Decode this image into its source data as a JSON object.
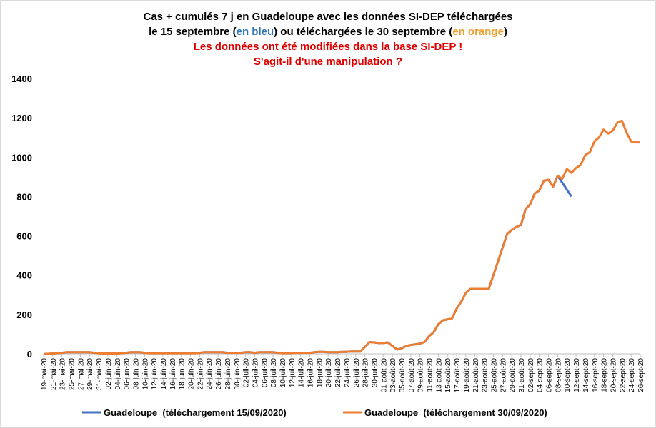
{
  "chart_data": {
    "type": "line",
    "title_lines": [
      [
        "Cas + cumulés 7 j en Guadeloupe avec les données SI-DEP téléchargées"
      ],
      [
        "le 15 septembre (",
        "en bleu",
        ") ou téléchargées le 30 septembre (",
        "en orange",
        ")"
      ]
    ],
    "title_colors": [
      [
        "#000000"
      ],
      [
        "#000000",
        "#2e75b6",
        "#000000",
        "#f0a030",
        "#000000"
      ]
    ],
    "subtitle_lines": [
      "Les données ont été modifiées dans la base SI-DEP !",
      "S'agit-il d'une manipulation ?"
    ],
    "subtitle_color": "#e00000",
    "categories": [
      "19-mai-20",
      null,
      "21-mai-20",
      null,
      "23-mai-20",
      null,
      "25-mai-20",
      null,
      "27-mai-20",
      null,
      "29-mai-20",
      null,
      "31-mai-20",
      null,
      "02-juin-20",
      null,
      "04-juin-20",
      null,
      "06-juin-20",
      null,
      "08-juin-20",
      null,
      "10-juin-20",
      null,
      "12-juin-20",
      null,
      "14-juin-20",
      null,
      "16-juin-20",
      null,
      "18-juin-20",
      null,
      "20-juin-20",
      null,
      "22-juin-20",
      null,
      "24-juin-20",
      null,
      "26-juin-20",
      null,
      "28-juin-20",
      null,
      "30-juin-20",
      null,
      "02-juil-20",
      null,
      "04-juil-20",
      null,
      "06-juil-20",
      null,
      "08-juil-20",
      null,
      "10-juil-20",
      null,
      "12-juil-20",
      null,
      "14-juil-20",
      null,
      "16-juil-20",
      null,
      "18-juil-20",
      null,
      "20-juil-20",
      null,
      "22-juil-20",
      null,
      "24-juil-20",
      null,
      "26-juil-20",
      null,
      "28-juil-20",
      null,
      "30-juil-20",
      null,
      "01-août-20",
      null,
      "03-août-20",
      null,
      "05-août-20",
      null,
      "07-août-20",
      null,
      "09-août-20",
      null,
      "11-août-20",
      null,
      "13-août-20",
      null,
      "15-août-20",
      null,
      "17-août-20",
      null,
      "19-août-20",
      null,
      "21-août-20",
      null,
      "23-août-20",
      null,
      "25-août-20",
      null,
      "27-août-20",
      null,
      "29-août-20",
      null,
      "31-août-20",
      null,
      "02-sept-20",
      null,
      "04-sept-20",
      null,
      "06-sept-20",
      null,
      "08-sept-20",
      null,
      "10-sept-20",
      null,
      "12-sept-20",
      null,
      "14-sept-20",
      null,
      "16-sept-20",
      null,
      "18-sept-20",
      null,
      "20-sept-20",
      null,
      "22-sept-20",
      null,
      "24-sept-20",
      null,
      "26-sept-20"
    ],
    "series": [
      {
        "name": "Guadeloupe  (téléchargement 15/09/2020)",
        "color": "#4472c4",
        "values": [
          0,
          0,
          2,
          3,
          5,
          8,
          8,
          8,
          8,
          8,
          8,
          5,
          3,
          2,
          2,
          2,
          2,
          3,
          5,
          8,
          8,
          8,
          5,
          3,
          3,
          3,
          3,
          3,
          3,
          3,
          3,
          3,
          3,
          3,
          5,
          8,
          8,
          8,
          8,
          8,
          5,
          5,
          5,
          5,
          8,
          8,
          5,
          8,
          8,
          8,
          8,
          5,
          3,
          3,
          3,
          5,
          5,
          5,
          5,
          8,
          10,
          10,
          8,
          8,
          8,
          10,
          10,
          12,
          12,
          12,
          35,
          60,
          58,
          55,
          55,
          58,
          40,
          22,
          28,
          40,
          45,
          48,
          52,
          60,
          90,
          110,
          150,
          170,
          175,
          180,
          230,
          265,
          310,
          330,
          330,
          330,
          330,
          330,
          400,
          470,
          540,
          610,
          630,
          645,
          655,
          735,
          760,
          815,
          830,
          880,
          885,
          850,
          905,
          870,
          835,
          800,
          null,
          null,
          null,
          null,
          null,
          null,
          null,
          null,
          null,
          null,
          null,
          null,
          null,
          null,
          null
        ]
      },
      {
        "name": "Guadeloupe  (téléchargement 30/09/2020)",
        "color": "#ed7d31",
        "values": [
          0,
          0,
          2,
          3,
          5,
          8,
          8,
          8,
          8,
          8,
          8,
          5,
          3,
          2,
          2,
          2,
          2,
          3,
          5,
          8,
          8,
          8,
          5,
          3,
          3,
          3,
          3,
          3,
          3,
          3,
          3,
          3,
          3,
          3,
          5,
          8,
          8,
          8,
          8,
          8,
          5,
          5,
          5,
          5,
          8,
          8,
          5,
          8,
          8,
          8,
          8,
          5,
          3,
          3,
          3,
          5,
          5,
          5,
          5,
          8,
          10,
          10,
          8,
          8,
          8,
          10,
          10,
          12,
          12,
          12,
          35,
          60,
          58,
          55,
          55,
          58,
          40,
          22,
          28,
          40,
          45,
          48,
          52,
          60,
          90,
          110,
          150,
          170,
          175,
          180,
          230,
          265,
          310,
          330,
          330,
          330,
          330,
          330,
          400,
          470,
          540,
          610,
          630,
          645,
          655,
          735,
          760,
          815,
          830,
          880,
          885,
          850,
          905,
          890,
          940,
          920,
          945,
          960,
          1010,
          1025,
          1080,
          1100,
          1140,
          1120,
          1135,
          1175,
          1185,
          1125,
          1080,
          1075,
          1075
        ]
      }
    ],
    "ylim": [
      0,
      1400
    ],
    "yticks": [
      0,
      200,
      400,
      600,
      800,
      1000,
      1200,
      1400
    ],
    "grid": false,
    "legend": "bottom"
  }
}
